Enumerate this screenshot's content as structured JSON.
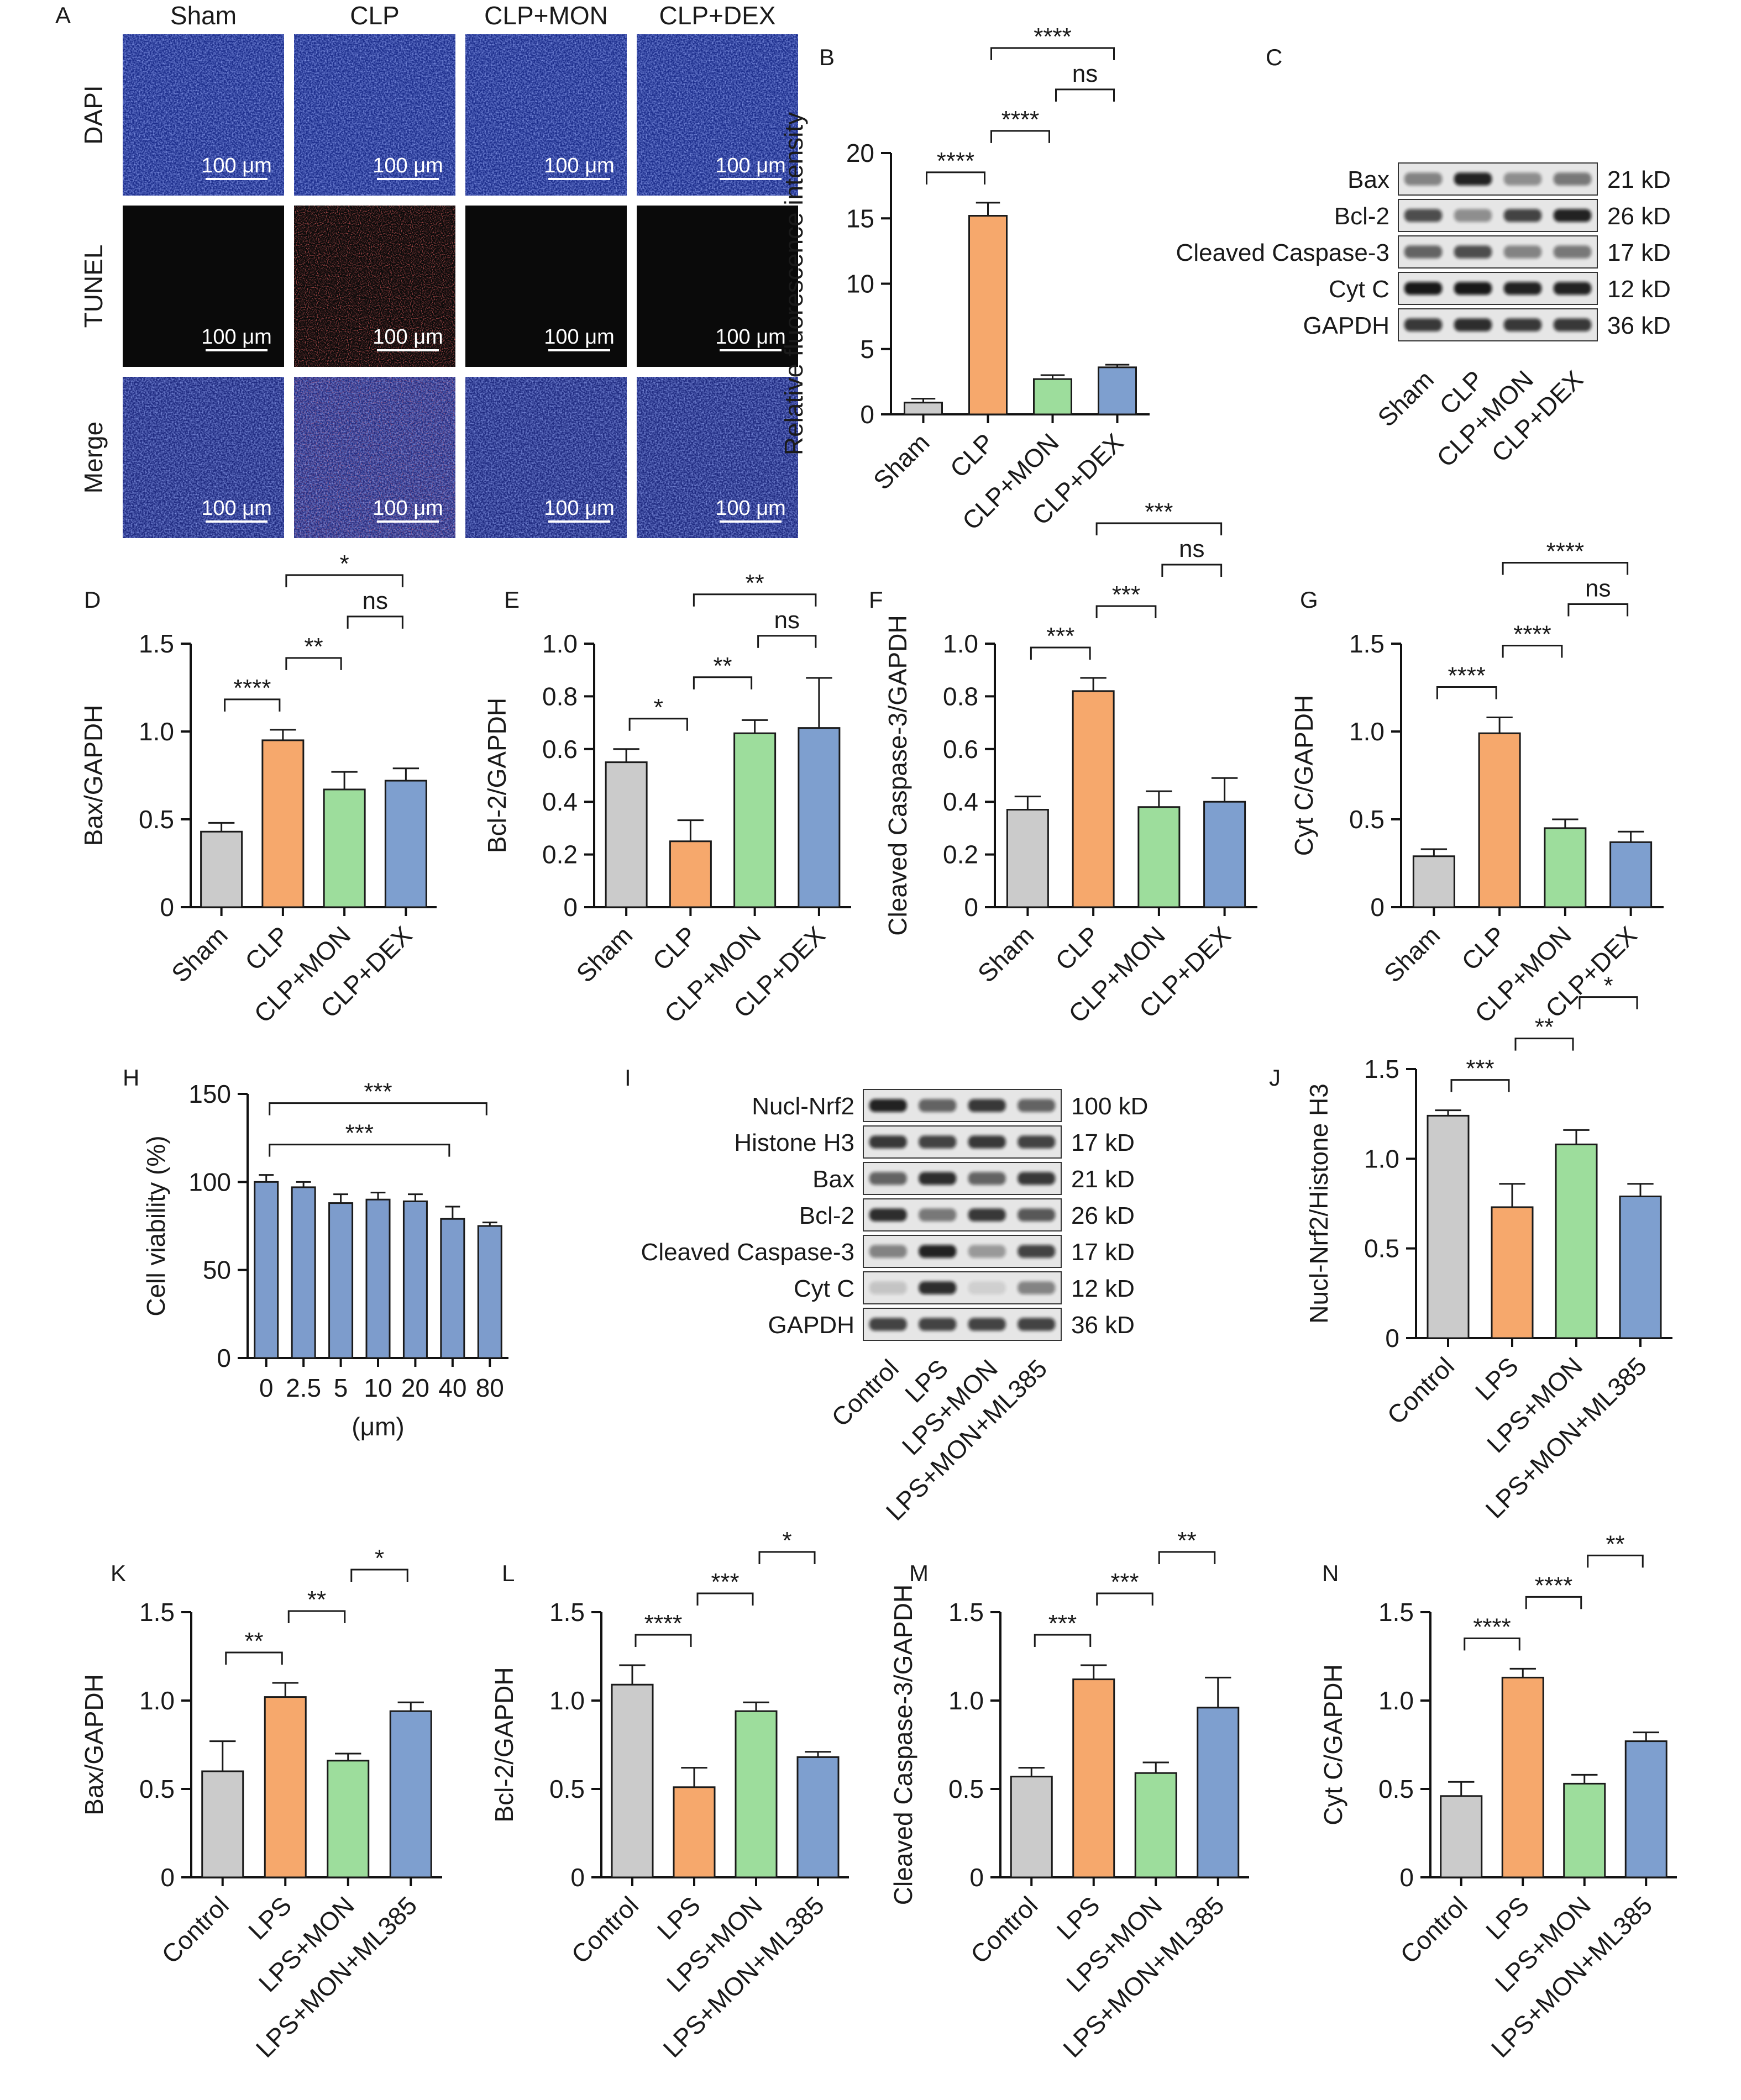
{
  "colors": {
    "grey": "#cbcbcb",
    "orange": "#f6a86c",
    "green": "#9ddd9c",
    "blue": "#7e9fcf",
    "hbar": "#7d9ccc",
    "dapi": "#1d2e8c",
    "tunel": "#0a0a0a",
    "merge": "#1f2a80"
  },
  "panelA": {
    "letter": "A",
    "columns": [
      "Sham",
      "CLP",
      "CLP+MON",
      "CLP+DEX"
    ],
    "rows": [
      "DAPI",
      "TUNEL",
      "Merge"
    ],
    "scale_label": "100 μm"
  },
  "panelC": {
    "letter": "C",
    "bands": [
      {
        "name": "Bax",
        "size": "21 kD"
      },
      {
        "name": "Bcl-2",
        "size": "26 kD"
      },
      {
        "name": "Cleaved Caspase-3",
        "size": "17 kD"
      },
      {
        "name": "Cyt C",
        "size": "12 kD"
      },
      {
        "name": "GAPDH",
        "size": "36 kD"
      }
    ],
    "lanes": [
      "Sham",
      "CLP",
      "CLP+MON",
      "CLP+DEX"
    ]
  },
  "panelI": {
    "letter": "I",
    "bands": [
      {
        "name": "Nucl-Nrf2",
        "size": "100 kD"
      },
      {
        "name": "Histone H3",
        "size": "17 kD"
      },
      {
        "name": "Bax",
        "size": "21 kD"
      },
      {
        "name": "Bcl-2",
        "size": "26 kD"
      },
      {
        "name": "Cleaved Caspase-3",
        "size": "17 kD"
      },
      {
        "name": "Cyt C",
        "size": "12 kD"
      },
      {
        "name": "GAPDH",
        "size": "36 kD"
      }
    ],
    "lanes": [
      "Control",
      "LPS",
      "LPS+MON",
      "LPS+MON+ML385"
    ]
  },
  "chart_data": [
    {
      "panel": "B",
      "type": "bar",
      "categories": [
        "Sham",
        "CLP",
        "CLP+MON",
        "CLP+DEX"
      ],
      "values": [
        0.9,
        15.2,
        2.7,
        3.6
      ],
      "errors": [
        0.3,
        1.0,
        0.3,
        0.2
      ],
      "ylabel": "Relative fluorescence intensity",
      "xlabel": "",
      "ylim": [
        0,
        20
      ],
      "yticks": [
        "0",
        "5",
        "10",
        "15",
        "20"
      ],
      "significance": [
        {
          "a": 0,
          "b": 1,
          "label": "****"
        },
        {
          "a": 1,
          "b": 2,
          "label": "****"
        },
        {
          "a": 1,
          "b": 3,
          "label": "****"
        },
        {
          "a": 2,
          "b": 3,
          "label": "ns"
        }
      ]
    },
    {
      "panel": "D",
      "type": "bar",
      "categories": [
        "Sham",
        "CLP",
        "CLP+MON",
        "CLP+DEX"
      ],
      "values": [
        0.43,
        0.95,
        0.67,
        0.72
      ],
      "errors": [
        0.05,
        0.06,
        0.1,
        0.07
      ],
      "ylabel": "Bax/GAPDH",
      "xlabel": "",
      "ylim": [
        0,
        1.5
      ],
      "yticks": [
        "0",
        "0.5",
        "1.0",
        "1.5"
      ],
      "significance": [
        {
          "a": 0,
          "b": 1,
          "label": "****"
        },
        {
          "a": 1,
          "b": 2,
          "label": "**"
        },
        {
          "a": 2,
          "b": 3,
          "label": "ns"
        },
        {
          "a": 1,
          "b": 3,
          "label": "*"
        }
      ]
    },
    {
      "panel": "E",
      "type": "bar",
      "categories": [
        "Sham",
        "CLP",
        "CLP+MON",
        "CLP+DEX"
      ],
      "values": [
        0.55,
        0.25,
        0.66,
        0.68
      ],
      "errors": [
        0.05,
        0.08,
        0.05,
        0.19
      ],
      "ylabel": "Bcl-2/GAPDH",
      "xlabel": "",
      "ylim": [
        0,
        1.0
      ],
      "yticks": [
        "0",
        "0.2",
        "0.4",
        "0.6",
        "0.8",
        "1.0"
      ],
      "significance": [
        {
          "a": 0,
          "b": 1,
          "label": "*"
        },
        {
          "a": 1,
          "b": 2,
          "label": "**"
        },
        {
          "a": 2,
          "b": 3,
          "label": "ns"
        },
        {
          "a": 1,
          "b": 3,
          "label": "**"
        }
      ]
    },
    {
      "panel": "F",
      "type": "bar",
      "categories": [
        "Sham",
        "CLP",
        "CLP+MON",
        "CLP+DEX"
      ],
      "values": [
        0.37,
        0.82,
        0.38,
        0.4
      ],
      "errors": [
        0.05,
        0.05,
        0.06,
        0.09
      ],
      "ylabel": "Cleaved Caspase-3/GAPDH",
      "xlabel": "",
      "ylim": [
        0,
        1.0
      ],
      "yticks": [
        "0",
        "0.2",
        "0.4",
        "0.6",
        "0.8",
        "1.0"
      ],
      "significance": [
        {
          "a": 0,
          "b": 1,
          "label": "***"
        },
        {
          "a": 1,
          "b": 2,
          "label": "***"
        },
        {
          "a": 2,
          "b": 3,
          "label": "ns"
        },
        {
          "a": 1,
          "b": 3,
          "label": "***"
        }
      ]
    },
    {
      "panel": "G",
      "type": "bar",
      "categories": [
        "Sham",
        "CLP",
        "CLP+MON",
        "CLP+DEX"
      ],
      "values": [
        0.29,
        0.99,
        0.45,
        0.37
      ],
      "errors": [
        0.04,
        0.09,
        0.05,
        0.06
      ],
      "ylabel": "Cyt C/GAPDH",
      "xlabel": "",
      "ylim": [
        0,
        1.5
      ],
      "yticks": [
        "0",
        "0.5",
        "1.0",
        "1.5"
      ],
      "significance": [
        {
          "a": 0,
          "b": 1,
          "label": "****"
        },
        {
          "a": 1,
          "b": 2,
          "label": "****"
        },
        {
          "a": 1,
          "b": 3,
          "label": "****"
        },
        {
          "a": 2,
          "b": 3,
          "label": "ns"
        }
      ]
    },
    {
      "panel": "H",
      "type": "bar",
      "categories": [
        "0",
        "2.5",
        "5",
        "10",
        "20",
        "40",
        "80"
      ],
      "values": [
        100,
        97,
        88,
        90,
        89,
        79,
        75
      ],
      "errors": [
        4,
        3,
        5,
        4,
        4,
        7,
        2
      ],
      "ylabel": "Cell viability (%)",
      "xlabel": "(μm)",
      "ylim": [
        0,
        150
      ],
      "yticks": [
        "0",
        "50",
        "100",
        "150"
      ],
      "significance": [
        {
          "a": 0,
          "b": 6,
          "label": "***"
        },
        {
          "a": 0,
          "b": 5,
          "label": "***"
        }
      ]
    },
    {
      "panel": "J",
      "type": "bar",
      "categories": [
        "Control",
        "LPS",
        "LPS+MON",
        "LPS+MON+ML385"
      ],
      "values": [
        1.24,
        0.73,
        1.08,
        0.79
      ],
      "errors": [
        0.03,
        0.13,
        0.08,
        0.07
      ],
      "ylabel": "Nucl-Nrf2/Histone H3",
      "xlabel": "",
      "ylim": [
        0,
        1.5
      ],
      "yticks": [
        "0",
        "0.5",
        "1.0",
        "1.5"
      ],
      "significance": [
        {
          "a": 0,
          "b": 1,
          "label": "***"
        },
        {
          "a": 1,
          "b": 2,
          "label": "**"
        },
        {
          "a": 2,
          "b": 3,
          "label": "*"
        }
      ]
    },
    {
      "panel": "K",
      "type": "bar",
      "categories": [
        "Control",
        "LPS",
        "LPS+MON",
        "LPS+MON+ML385"
      ],
      "values": [
        0.6,
        1.02,
        0.66,
        0.94
      ],
      "errors": [
        0.17,
        0.08,
        0.04,
        0.05
      ],
      "ylabel": "Bax/GAPDH",
      "xlabel": "",
      "ylim": [
        0,
        1.5
      ],
      "yticks": [
        "0",
        "0.5",
        "1.0",
        "1.5"
      ],
      "significance": [
        {
          "a": 0,
          "b": 1,
          "label": "**"
        },
        {
          "a": 1,
          "b": 2,
          "label": "**"
        },
        {
          "a": 2,
          "b": 3,
          "label": "*"
        }
      ]
    },
    {
      "panel": "L",
      "type": "bar",
      "categories": [
        "Control",
        "LPS",
        "LPS+MON",
        "LPS+MON+ML385"
      ],
      "values": [
        1.09,
        0.51,
        0.94,
        0.68
      ],
      "errors": [
        0.11,
        0.11,
        0.05,
        0.03
      ],
      "ylabel": "Bcl-2/GAPDH",
      "xlabel": "",
      "ylim": [
        0,
        1.5
      ],
      "yticks": [
        "0",
        "0.5",
        "1.0",
        "1.5"
      ],
      "significance": [
        {
          "a": 0,
          "b": 1,
          "label": "****"
        },
        {
          "a": 1,
          "b": 2,
          "label": "***"
        },
        {
          "a": 2,
          "b": 3,
          "label": "*"
        }
      ]
    },
    {
      "panel": "M",
      "type": "bar",
      "categories": [
        "Control",
        "LPS",
        "LPS+MON",
        "LPS+MON+ML385"
      ],
      "values": [
        0.57,
        1.12,
        0.59,
        0.96
      ],
      "errors": [
        0.05,
        0.08,
        0.06,
        0.17
      ],
      "ylabel": "Cleaved Caspase-3/GAPDH",
      "xlabel": "",
      "ylim": [
        0,
        1.5
      ],
      "yticks": [
        "0",
        "0.5",
        "1.0",
        "1.5"
      ],
      "significance": [
        {
          "a": 0,
          "b": 1,
          "label": "***"
        },
        {
          "a": 1,
          "b": 2,
          "label": "***"
        },
        {
          "a": 2,
          "b": 3,
          "label": "**"
        }
      ]
    },
    {
      "panel": "N",
      "type": "bar",
      "categories": [
        "Control",
        "LPS",
        "LPS+MON",
        "LPS+MON+ML385"
      ],
      "values": [
        0.46,
        1.13,
        0.53,
        0.77
      ],
      "errors": [
        0.08,
        0.05,
        0.05,
        0.05
      ],
      "ylabel": "Cyt C/GAPDH",
      "xlabel": "",
      "ylim": [
        0,
        1.5
      ],
      "yticks": [
        "0",
        "0.5",
        "1.0",
        "1.5"
      ],
      "significance": [
        {
          "a": 0,
          "b": 1,
          "label": "****"
        },
        {
          "a": 1,
          "b": 2,
          "label": "****"
        },
        {
          "a": 2,
          "b": 3,
          "label": "**"
        }
      ]
    }
  ]
}
